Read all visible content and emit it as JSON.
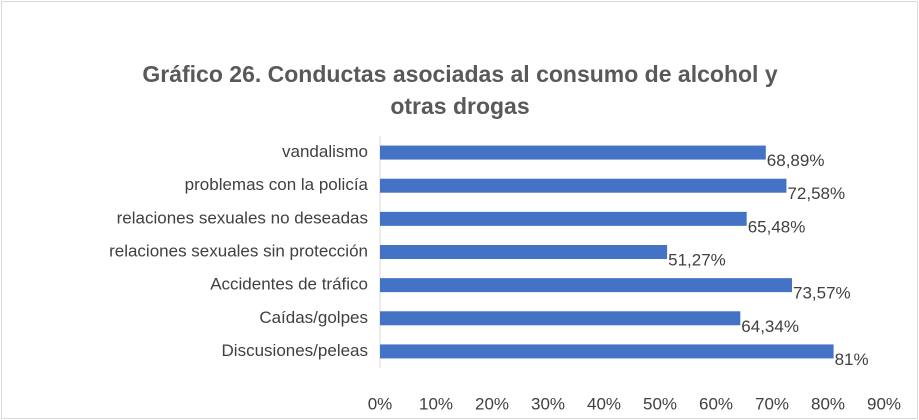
{
  "chart_data": {
    "type": "bar",
    "orientation": "horizontal",
    "title": "Gráfico 26. Conductas asociadas al consumo de alcohol y otras drogas",
    "categories": [
      "vandalismo",
      "problemas con la policía",
      "relaciones sexuales no deseadas",
      "relaciones sexuales sin protección",
      "Accidentes de tráfico",
      "Caídas/golpes",
      "Discusiones/peleas"
    ],
    "values": [
      68.89,
      72.58,
      65.48,
      51.27,
      73.57,
      64.34,
      81
    ],
    "value_labels": [
      "68,89%",
      "72,58%",
      "65,48%",
      "51,27%",
      "73,57%",
      "64,34%",
      "81%"
    ],
    "color": "#4472c4",
    "xlim": [
      0,
      90
    ],
    "xticks": [
      {
        "value": 0,
        "label": "0%"
      },
      {
        "value": 10,
        "label": "10%"
      },
      {
        "value": 20,
        "label": "20%"
      },
      {
        "value": 30,
        "label": "30%"
      },
      {
        "value": 40,
        "label": "40%"
      },
      {
        "value": 50,
        "label": "50%"
      },
      {
        "value": 60,
        "label": "60%"
      },
      {
        "value": 70,
        "label": "70%"
      },
      {
        "value": 80,
        "label": "80%"
      },
      {
        "value": 90,
        "label": "90%"
      }
    ],
    "grid": false
  }
}
